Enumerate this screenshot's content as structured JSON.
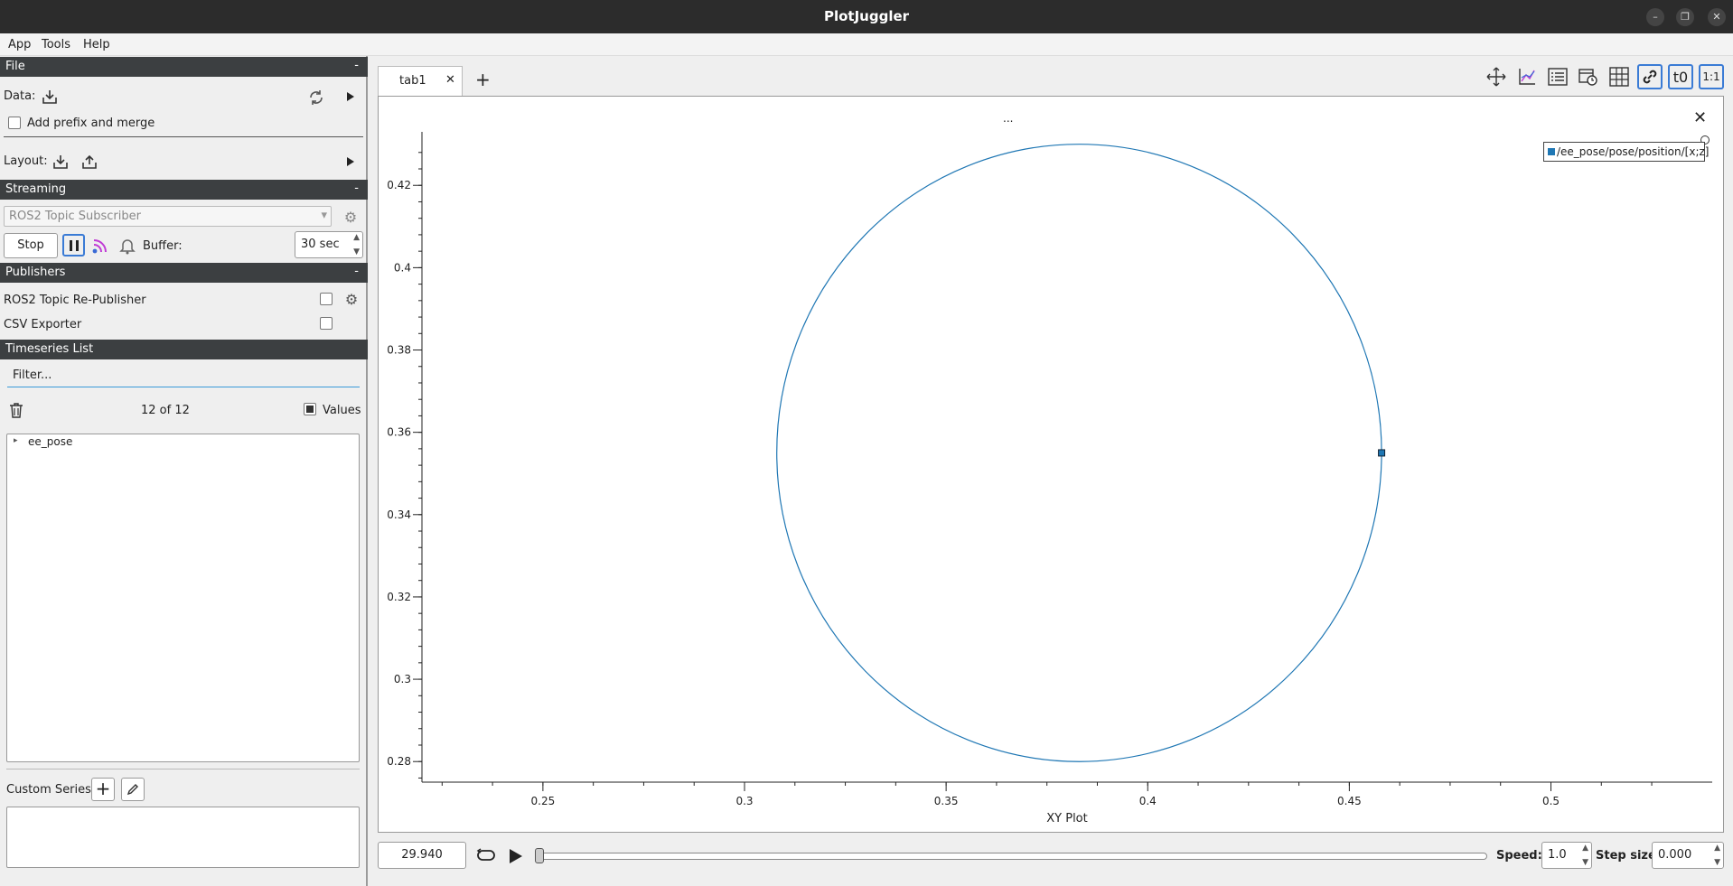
{
  "window": {
    "title": "PlotJuggler"
  },
  "menu": [
    "App",
    "Tools",
    "Help"
  ],
  "file": {
    "header": "File",
    "collapse": "-",
    "data_label": "Data:",
    "prefix_label": "Add prefix and merge",
    "layout_label": "Layout:"
  },
  "streaming": {
    "header": "Streaming",
    "collapse": "-",
    "source": "ROS2 Topic Subscriber",
    "stop_label": "Stop",
    "buffer_label": "Buffer:",
    "buffer_value": "30 sec"
  },
  "publishers": {
    "header": "Publishers",
    "collapse": "-",
    "items": [
      "ROS2 Topic Re-Publisher",
      "CSV Exporter"
    ]
  },
  "timeseries": {
    "header": "Timeseries List",
    "filter_placeholder": "Filter...",
    "count": "12 of 12",
    "values_label": "Values",
    "tree": [
      "ee_pose"
    ]
  },
  "custom": {
    "label": "Custom Series:"
  },
  "tabs": {
    "items": [
      "tab1"
    ],
    "add": "+"
  },
  "toolbar": {
    "t0": "t0",
    "ratio": "1:1"
  },
  "plot": {
    "title": "...",
    "legend": "/ee_pose/pose/position/[x;z]",
    "close": "✕"
  },
  "playback": {
    "time": "29.940",
    "speed_label": "Speed:",
    "speed_value": "1.0",
    "step_label": "Step size:",
    "step_value": "0.000"
  },
  "chart_data": {
    "type": "scatter",
    "title": "",
    "xlabel": "XY Plot",
    "ylabel": "",
    "xlim": [
      0.22,
      0.54
    ],
    "ylim": [
      0.275,
      0.433
    ],
    "xticks": [
      "0.25",
      "0.3",
      "0.35",
      "0.4",
      "0.45",
      "0.5"
    ],
    "yticks": [
      "0.28",
      "0.3",
      "0.32",
      "0.34",
      "0.36",
      "0.38",
      "0.4",
      "0.42"
    ],
    "series": [
      {
        "name": "/ee_pose/pose/position/[x;z]",
        "color": "#1f77b4",
        "shape": "circle",
        "center": [
          0.383,
          0.355
        ],
        "radius_x": 0.075,
        "radius_y": 0.075,
        "current_point": [
          0.458,
          0.355
        ]
      }
    ],
    "grid": false,
    "legend_position": "top-right"
  }
}
